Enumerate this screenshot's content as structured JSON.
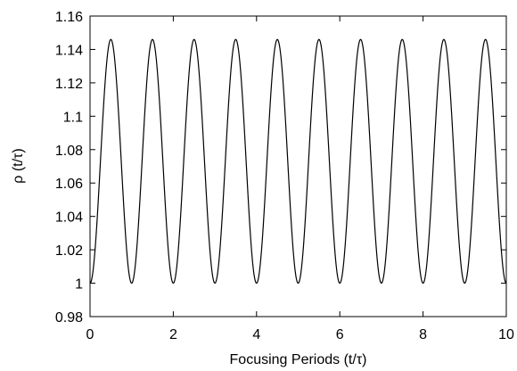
{
  "chart_data": {
    "type": "line",
    "xlabel": "Focusing Periods (t/τ)",
    "ylabel": "ρ (t/τ)",
    "xlim": [
      0,
      10
    ],
    "ylim": [
      0.98,
      1.16
    ],
    "xticks": [
      0,
      2,
      4,
      6,
      8,
      10
    ],
    "xtick_labels": [
      "0",
      "2",
      "4",
      "6",
      "8",
      "10"
    ],
    "yticks": [
      0.98,
      1.0,
      1.02,
      1.04,
      1.06,
      1.08,
      1.1,
      1.12,
      1.14,
      1.16
    ],
    "ytick_labels": [
      "0.98",
      "1",
      "1.02",
      "1.04",
      "1.06",
      "1.08",
      "1.1",
      "1.12",
      "1.14",
      "1.16"
    ],
    "grid": false,
    "series": [
      {
        "color": "#000000",
        "x": [
          0,
          0.1,
          0.2,
          0.3,
          0.4,
          0.5,
          0.6,
          0.7,
          0.8,
          0.9,
          1.0
        ],
        "y": [
          1.0,
          1.008,
          1.034,
          1.085,
          1.134,
          1.146,
          1.134,
          1.085,
          1.034,
          1.008,
          1.0
        ],
        "periodic_repeat_count": 10,
        "period": 1.0,
        "min_value": 1.0,
        "max_value": 1.146
      }
    ]
  }
}
